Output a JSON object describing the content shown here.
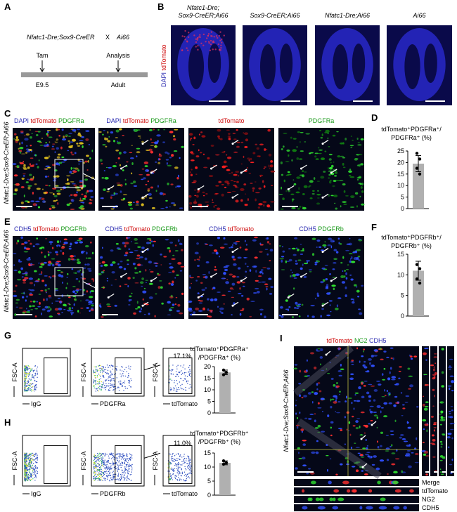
{
  "panels": {
    "A": {
      "label": "A",
      "cross": {
        "left": "Nfatc1-Dre;Sox9-CreER",
        "x": "X",
        "right": "Ai66"
      },
      "timeline": {
        "start_event": "Tam",
        "end_event": "Analysis",
        "start_time": "E9.5",
        "end_time": "Adult"
      }
    },
    "B": {
      "label": "B",
      "stain": [
        {
          "text": "DAPI",
          "color": "#2a2ab0"
        },
        {
          "text": "tdTomato",
          "color": "#d01010"
        }
      ],
      "images": [
        {
          "title": [
            "Nfatc1-Dre;",
            "Sox9-CreER;Ai66"
          ]
        },
        {
          "title": [
            "Sox9-CreER;Ai66"
          ]
        },
        {
          "title": [
            "Nfatc1-Dre;Ai66"
          ]
        },
        {
          "title": [
            "Ai66"
          ]
        }
      ]
    },
    "C": {
      "label": "C",
      "genotype": "Nfatc1-Dre;Sox9-CreER;Ai66",
      "region": "LV",
      "columns": [
        [
          {
            "text": "DAPI",
            "color": "#2a2ab0"
          },
          {
            "text": "tdTomato",
            "color": "#d01010"
          },
          {
            "text": "PDGFRa",
            "color": "#1a9a1a"
          }
        ],
        [
          {
            "text": "DAPI",
            "color": "#2a2ab0"
          },
          {
            "text": "tdTomato",
            "color": "#d01010"
          },
          {
            "text": "PDGFRa",
            "color": "#1a9a1a"
          }
        ],
        [
          {
            "text": "tdTomato",
            "color": "#d01010"
          }
        ],
        [
          {
            "text": "PDGFRa",
            "color": "#1a9a1a"
          }
        ]
      ]
    },
    "D": {
      "label": "D",
      "title": [
        "tdTomato⁺PDGFRa⁺/",
        "PDGFRa⁺ (%)"
      ],
      "mean": 19.5,
      "sd": 3.5,
      "points": [
        24,
        21.5,
        17.5,
        15
      ],
      "ylim": [
        0,
        25
      ],
      "yticks": [
        0,
        5,
        10,
        15,
        20,
        25
      ],
      "color": "#b0b0b0"
    },
    "E": {
      "label": "E",
      "genotype": "Nfatc1-Dre;Sox9-CreER;Ai66",
      "region": "LV",
      "columns": [
        [
          {
            "text": "CDH5",
            "color": "#2a2ab0"
          },
          {
            "text": "tdTomato",
            "color": "#d01010"
          },
          {
            "text": "PDGFRb",
            "color": "#1a9a1a"
          }
        ],
        [
          {
            "text": "CDH5",
            "color": "#2a2ab0"
          },
          {
            "text": "tdTomato",
            "color": "#d01010"
          },
          {
            "text": "PDGFRb",
            "color": "#1a9a1a"
          }
        ],
        [
          {
            "text": "CDH5",
            "color": "#2a2ab0"
          },
          {
            "text": "tdTomato",
            "color": "#d01010"
          }
        ],
        [
          {
            "text": "CDH5",
            "color": "#2a2ab0"
          },
          {
            "text": "PDGFRb",
            "color": "#1a9a1a"
          }
        ]
      ]
    },
    "F": {
      "label": "F",
      "title": [
        "tdTomato⁺PDGFRb⁺/",
        "PDGFRb⁺ (%)"
      ],
      "mean": 11,
      "sd": 2.3,
      "points": [
        12.5,
        11.5,
        9,
        8
      ],
      "ylim": [
        0,
        15
      ],
      "yticks": [
        0,
        5,
        10,
        15
      ],
      "color": "#b0b0b0"
    },
    "G": {
      "label": "G",
      "y_label": "FSC-A",
      "x_labels": [
        "IgG",
        "PDGFRa",
        "tdTomato"
      ],
      "gate": "17.1%",
      "title": [
        "tdTomato⁺PDGFRa⁺",
        "/PDGFRa⁺ (%)"
      ],
      "mean": 17.5,
      "sd": 1,
      "points": [
        18.5,
        17.5,
        16.5
      ],
      "ylim": [
        0,
        20
      ],
      "yticks": [
        0,
        5,
        10,
        15,
        20
      ],
      "color": "#b0b0b0"
    },
    "H": {
      "label": "H",
      "y_label": "FSC-A",
      "x_labels": [
        "IgG",
        "PDGFRb",
        "tdTomato"
      ],
      "gate": "11.0%",
      "title": [
        "tdTomato⁺PDGFRb⁺",
        "/PDGFRb⁺ (%)"
      ],
      "mean": 11.5,
      "sd": 0.7,
      "points": [
        12.2,
        11.5,
        11
      ],
      "ylim": [
        0,
        15
      ],
      "yticks": [
        0,
        5,
        10,
        15
      ],
      "color": "#b0b0b0"
    },
    "I": {
      "label": "I",
      "genotype": "Nfatc1-Dre;Sox9-CreER;Ai66",
      "stain": [
        {
          "text": "tdTomato",
          "color": "#d01010"
        },
        {
          "text": "NG2",
          "color": "#1a9a1a"
        },
        {
          "text": "CDH5",
          "color": "#2a2ab0"
        }
      ],
      "strips": [
        {
          "text": "Merge",
          "color": "#000000"
        },
        {
          "text": "tdTomato",
          "color": "#d01010"
        },
        {
          "text": "NG2",
          "color": "#1a9a1a"
        },
        {
          "text": "CDH5",
          "color": "#2a2ab0"
        }
      ]
    }
  }
}
